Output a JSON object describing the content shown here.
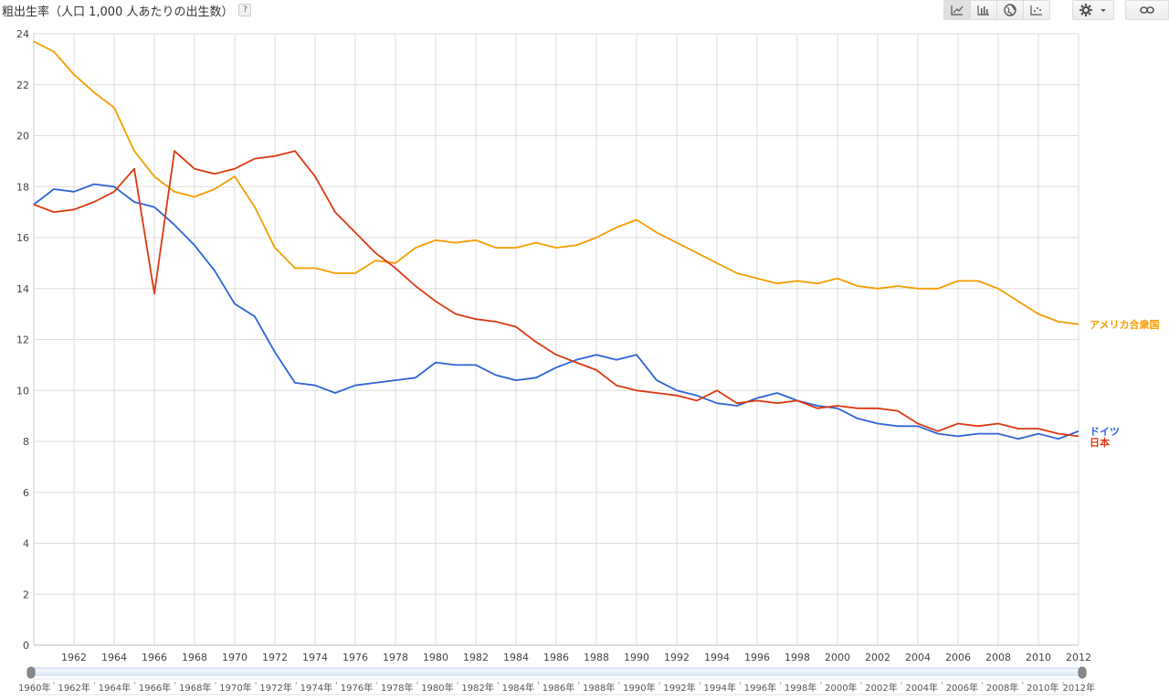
{
  "title": "粗出生率（人口 1,000 人あたりの出生数）",
  "help_label": "?",
  "toolbar": {
    "chart_types": [
      {
        "icon": "line-chart-icon",
        "active": true
      },
      {
        "icon": "bar-chart-icon",
        "active": false
      },
      {
        "icon": "map-globe-icon",
        "active": false
      },
      {
        "icon": "scatter-chart-icon",
        "active": false
      }
    ],
    "settings_icon": "gear-icon",
    "dropdown_icon": "caret-down-icon",
    "link_icon": "link-icon"
  },
  "chart_data": {
    "type": "line",
    "title": "粗出生率（人口 1,000 人あたりの出生数）",
    "xlabel": "",
    "ylabel": "",
    "xlim": [
      1960,
      2012
    ],
    "ylim": [
      0,
      24
    ],
    "yticks": [
      0,
      2,
      4,
      6,
      8,
      10,
      12,
      14,
      16,
      18,
      20,
      22,
      24
    ],
    "xticks": [
      1962,
      1964,
      1966,
      1968,
      1970,
      1972,
      1974,
      1976,
      1978,
      1980,
      1982,
      1984,
      1986,
      1988,
      1990,
      1992,
      1994,
      1996,
      1998,
      2000,
      2002,
      2004,
      2006,
      2008,
      2010,
      2012
    ],
    "grid": true,
    "legend": "right-end labels",
    "x": [
      1960,
      1961,
      1962,
      1963,
      1964,
      1965,
      1966,
      1967,
      1968,
      1969,
      1970,
      1971,
      1972,
      1973,
      1974,
      1975,
      1976,
      1977,
      1978,
      1979,
      1980,
      1981,
      1982,
      1983,
      1984,
      1985,
      1986,
      1987,
      1988,
      1989,
      1990,
      1991,
      1992,
      1993,
      1994,
      1995,
      1996,
      1997,
      1998,
      1999,
      2000,
      2001,
      2002,
      2003,
      2004,
      2005,
      2006,
      2007,
      2008,
      2009,
      2010,
      2011,
      2012
    ],
    "series": [
      {
        "name": "アメリカ合衆国",
        "color": "#f59d00",
        "values": [
          23.7,
          23.3,
          22.4,
          21.7,
          21.1,
          19.4,
          18.4,
          17.8,
          17.6,
          17.9,
          18.4,
          17.2,
          15.6,
          14.8,
          14.8,
          14.6,
          14.6,
          15.1,
          15.0,
          15.6,
          15.9,
          15.8,
          15.9,
          15.6,
          15.6,
          15.8,
          15.6,
          15.7,
          16.0,
          16.4,
          16.7,
          16.2,
          15.8,
          15.4,
          15.0,
          14.6,
          14.4,
          14.2,
          14.3,
          14.2,
          14.4,
          14.1,
          14.0,
          14.1,
          14.0,
          14.0,
          14.3,
          14.3,
          14.0,
          13.5,
          13.0,
          12.7,
          12.6
        ]
      },
      {
        "name": "ドイツ",
        "color": "#2f63d6",
        "values": [
          17.3,
          17.9,
          17.8,
          18.1,
          18.0,
          17.4,
          17.2,
          16.5,
          15.7,
          14.7,
          13.4,
          12.9,
          11.5,
          10.3,
          10.2,
          9.9,
          10.2,
          10.3,
          10.4,
          10.5,
          11.1,
          11.0,
          11.0,
          10.6,
          10.4,
          10.5,
          10.9,
          11.2,
          11.4,
          11.2,
          11.4,
          10.4,
          10.0,
          9.8,
          9.5,
          9.4,
          9.7,
          9.9,
          9.6,
          9.4,
          9.3,
          8.9,
          8.7,
          8.6,
          8.6,
          8.3,
          8.2,
          8.3,
          8.3,
          8.1,
          8.3,
          8.1,
          8.4
        ]
      },
      {
        "name": "日本",
        "color": "#dc3912",
        "values": [
          17.3,
          17.0,
          17.1,
          17.4,
          17.8,
          18.7,
          13.8,
          19.4,
          18.7,
          18.5,
          18.7,
          19.1,
          19.2,
          19.4,
          18.4,
          17.0,
          16.2,
          15.4,
          14.8,
          14.1,
          13.5,
          13.0,
          12.8,
          12.7,
          12.5,
          11.9,
          11.4,
          11.1,
          10.8,
          10.2,
          10.0,
          9.9,
          9.8,
          9.6,
          10.0,
          9.5,
          9.6,
          9.5,
          9.6,
          9.3,
          9.4,
          9.3,
          9.3,
          9.2,
          8.7,
          8.4,
          8.7,
          8.6,
          8.7,
          8.5,
          8.5,
          8.3,
          8.2
        ]
      }
    ],
    "timeline": {
      "labels": [
        "1960年",
        "1962年",
        "1964年",
        "1966年",
        "1968年",
        "1970年",
        "1972年",
        "1974年",
        "1976年",
        "1978年",
        "1980年",
        "1982年",
        "1984年",
        "1986年",
        "1988年",
        "1990年",
        "1992年",
        "1994年",
        "1996年",
        "1998年",
        "2000年",
        "2002年",
        "2004年",
        "2006年",
        "2008年",
        "2010年",
        "2012年"
      ],
      "start": 1960,
      "end": 2012
    }
  }
}
